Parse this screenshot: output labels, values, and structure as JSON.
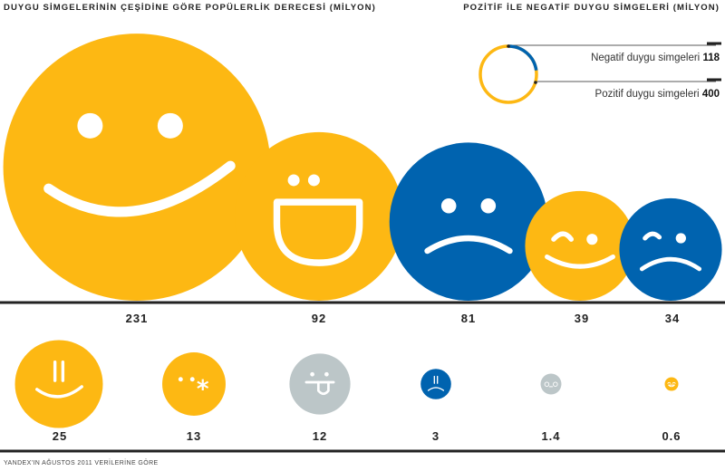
{
  "chart_data": {
    "type": "bubble",
    "title": "DUYGU SİMGELERİNİN ÇEŞİDİNE GÖRE POPÜLERLİK DERECESİ (MİLYON)",
    "values": [
      231,
      92,
      81,
      39,
      34,
      25,
      13,
      12,
      3,
      1.4,
      0.6
    ],
    "value_labels": [
      "231",
      "92",
      "81",
      "39",
      "34",
      "25",
      "13",
      "12",
      "3",
      "1.4",
      "0.6"
    ],
    "sentiment": [
      "positive",
      "positive",
      "negative",
      "positive",
      "negative",
      "positive",
      "positive",
      "neutral",
      "negative",
      "neutral",
      "positive"
    ],
    "icons": [
      "big-smile-icon",
      "tongue-grin-icon",
      "frown-icon",
      "wink-smile-icon",
      "wink-frown-icon",
      "straight-eyes-smile-icon",
      "wink-kiss-icon",
      "tongue-out-icon",
      "straight-eyes-frown-icon",
      "o-underscore-o-icon",
      "happy-closed-eyes-icon"
    ]
  },
  "legend": {
    "title": "POZİTİF İLE NEGATİF DUYGU SİMGELERİ (MİLYON)",
    "negative_label": "Negatif duygu simgeleri",
    "negative_value": "118",
    "positive_label": "Pozitif duygu simgeleri",
    "positive_value": "400"
  },
  "source": "YANDEX'IN AĞUSTOS 2011 VERİLERİNE GÖRE",
  "colors": {
    "positive": "#FDB813",
    "negative": "#0063AF",
    "neutral": "#BCC6C8",
    "face": "#ffffff",
    "text": "#222222"
  }
}
